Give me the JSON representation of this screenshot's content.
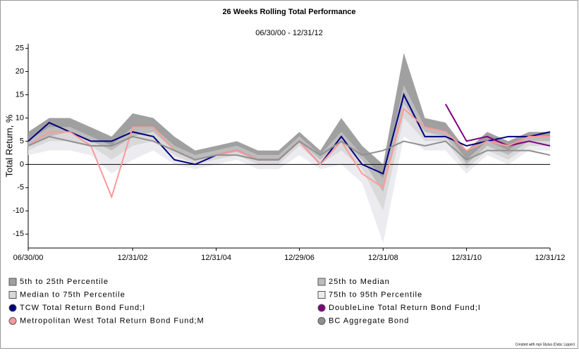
{
  "chart_data": {
    "type": "line",
    "title": "26 Weeks Rolling Total Performance",
    "subtitle": "06/30/00 - 12/31/12",
    "y_label": "Total Return, %",
    "footnote": "Created with mpi Stylus (Data: Lipper)",
    "x": [
      "2000-06-30",
      "2000-12-31",
      "2001-06-30",
      "2001-12-31",
      "2002-06-30",
      "2002-12-31",
      "2003-06-30",
      "2003-12-31",
      "2004-06-30",
      "2004-12-31",
      "2005-06-30",
      "2005-12-31",
      "2006-06-30",
      "2006-12-29",
      "2007-06-30",
      "2007-12-31",
      "2008-06-30",
      "2008-12-31",
      "2009-06-30",
      "2009-12-31",
      "2010-06-30",
      "2010-12-31",
      "2011-06-30",
      "2011-12-31",
      "2012-06-30",
      "2012-12-31"
    ],
    "xlim": [
      "2000-06-30",
      "2012-12-31"
    ],
    "xticks": [
      {
        "value": "2000-06-30",
        "label": "06/30/00"
      },
      {
        "value": "2002-12-31",
        "label": "12/31/02"
      },
      {
        "value": "2004-12-31",
        "label": "12/31/04"
      },
      {
        "value": "2006-12-29",
        "label": "12/29/06"
      },
      {
        "value": "2008-12-31",
        "label": "12/31/08"
      },
      {
        "value": "2010-12-31",
        "label": "12/31/10"
      },
      {
        "value": "2012-12-31",
        "label": "12/31/12"
      }
    ],
    "ylim": [
      -18,
      26
    ],
    "yticks": [
      25,
      20,
      15,
      10,
      5,
      0,
      -5,
      -10,
      -15
    ],
    "percentile_edges": [
      [
        7,
        10,
        10,
        8,
        6,
        11,
        10,
        6,
        3,
        4,
        5,
        3,
        3,
        7,
        3,
        10,
        4,
        0,
        24,
        10,
        9,
        3,
        7,
        5,
        7,
        7
      ],
      [
        5,
        8,
        8,
        6,
        4,
        8,
        8,
        4,
        2,
        3,
        4,
        2,
        2,
        6,
        2,
        7,
        2,
        -3,
        17,
        8,
        7,
        1,
        5,
        3,
        6,
        6
      ],
      [
        4,
        6,
        7,
        5,
        3,
        6,
        7,
        3,
        1,
        2,
        3,
        1,
        1,
        5,
        1,
        5,
        1,
        -6,
        13,
        7,
        6,
        0,
        4,
        2,
        5,
        5
      ],
      [
        3,
        5,
        5,
        4,
        1,
        4,
        5,
        2,
        0,
        1,
        2,
        0,
        0,
        4,
        0,
        3,
        -1,
        -10,
        10,
        5,
        5,
        -1,
        3,
        1,
        4,
        4
      ],
      [
        2,
        3,
        3,
        2,
        -2,
        1,
        3,
        0,
        -1,
        0,
        1,
        -1,
        -1,
        2,
        -1,
        0,
        -4,
        -17,
        6,
        3,
        3,
        -2,
        2,
        0,
        3,
        3
      ]
    ],
    "bands": [
      {
        "name": "5th to 25th Percentile",
        "color": "#a0a0a0"
      },
      {
        "name": "25th to Median",
        "color": "#bcbcbc"
      },
      {
        "name": "Median to 75th Percentile",
        "color": "#d9d9d9"
      },
      {
        "name": "75th to 95th Percentile",
        "color": "#ececf0"
      }
    ],
    "series": [
      {
        "name": "TCW Total Return Bond Fund;I",
        "color": "#000080",
        "values": [
          5,
          9,
          7,
          5,
          5,
          7,
          6,
          1,
          0,
          2,
          3,
          1,
          1,
          5,
          0,
          6,
          0,
          -2,
          15,
          6,
          6,
          4,
          5,
          6,
          6,
          7
        ]
      },
      {
        "name": "DoubleLine Total Return Bond Fund;I",
        "color": "#800080",
        "values": [
          null,
          null,
          null,
          null,
          null,
          null,
          null,
          null,
          null,
          null,
          null,
          null,
          null,
          null,
          null,
          null,
          null,
          null,
          null,
          null,
          13,
          5,
          6,
          4,
          5,
          4
        ]
      },
      {
        "name": "Metropolitan West Total Return Bond Fund;M",
        "color": "#ff9999",
        "values": [
          4,
          7,
          7,
          4,
          -7,
          8,
          8,
          3,
          1,
          2,
          3,
          1,
          1,
          5,
          0,
          5,
          -2,
          -5,
          12,
          8,
          7,
          3,
          5,
          4,
          6,
          6
        ]
      },
      {
        "name": "BC Aggregate Bond",
        "color": "#909090",
        "values": [
          4,
          6,
          5,
          4,
          4,
          6,
          5,
          3,
          1,
          2,
          2,
          1,
          1,
          5,
          2,
          5,
          2,
          3,
          5,
          4,
          5,
          1,
          3,
          3,
          3,
          2
        ]
      }
    ]
  }
}
